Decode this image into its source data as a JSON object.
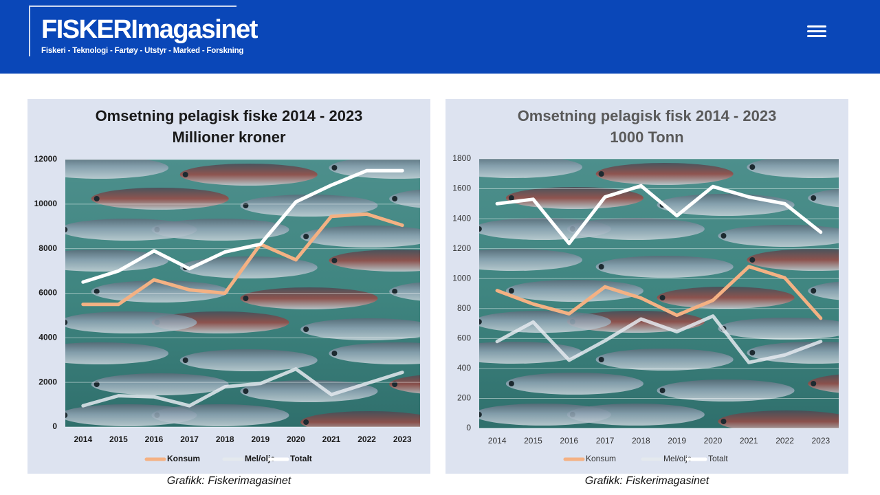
{
  "header": {
    "logo": "FISKERImagasinet",
    "tagline": "Fiskeri - Teknologi - Fartøy - Utstyr - Marked - Forskning"
  },
  "chart_data": [
    {
      "type": "line",
      "title": "Omsetning pelagisk fiske 2014 - 2023",
      "subtitle": "Millioner kroner",
      "categories": [
        "2014",
        "2015",
        "2016",
        "2017",
        "2018",
        "2019",
        "2020",
        "2021",
        "2022",
        "2023"
      ],
      "series": [
        {
          "name": "Konsum",
          "color": "#f4b183",
          "values": [
            5500,
            5500,
            6600,
            6150,
            6000,
            8200,
            7500,
            9450,
            9550,
            9050
          ]
        },
        {
          "name": "Mel/olje",
          "color": "#e4e9ee",
          "values": [
            950,
            1400,
            1350,
            950,
            1800,
            1950,
            2600,
            1450,
            1950,
            2450
          ]
        },
        {
          "name": "Totalt",
          "color": "#ffffff",
          "values": [
            6500,
            7000,
            7900,
            7100,
            7850,
            8200,
            10100,
            10850,
            11500,
            11500
          ]
        }
      ],
      "ylim": [
        0,
        12000
      ],
      "yticks": [
        0,
        2000,
        4000,
        6000,
        8000,
        10000,
        12000
      ],
      "grid": true,
      "legend": "bottom",
      "caption": "Grafikk: Fiskerimagasinet"
    },
    {
      "type": "line",
      "title": "Omsetning pelagisk fisk 2014 - 2023",
      "subtitle": "1000 Tonn",
      "categories": [
        "2014",
        "2015",
        "2016",
        "2017",
        "2018",
        "2019",
        "2020",
        "2021",
        "2022",
        "2023"
      ],
      "series": [
        {
          "name": "Konsum",
          "color": "#f4b183",
          "values": [
            920,
            830,
            765,
            945,
            870,
            755,
            855,
            1080,
            1005,
            735
          ]
        },
        {
          "name": "Mel/olje",
          "color": "#e4e9ee",
          "values": [
            580,
            710,
            455,
            585,
            730,
            645,
            750,
            440,
            490,
            580
          ]
        },
        {
          "name": "Totalt",
          "color": "#ffffff",
          "values": [
            1500,
            1530,
            1235,
            1545,
            1620,
            1420,
            1615,
            1545,
            1500,
            1310
          ]
        }
      ],
      "ylim": [
        0,
        1800
      ],
      "yticks": [
        0,
        200,
        400,
        600,
        800,
        1000,
        1200,
        1400,
        1600,
        1800
      ],
      "grid": true,
      "legend": "bottom",
      "caption": "Grafikk: Fiskerimagasinet"
    }
  ]
}
